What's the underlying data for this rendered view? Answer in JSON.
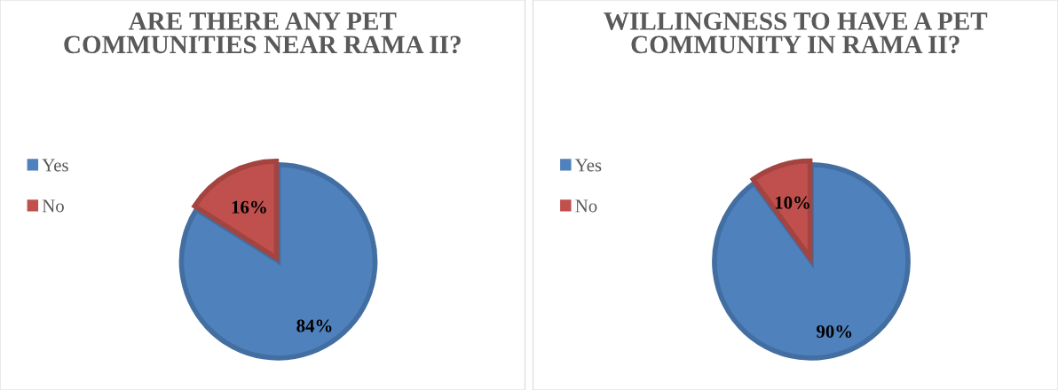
{
  "chart_data": [
    {
      "type": "pie",
      "title": "ARE THERE ANY PET COMMUNITIES NEAR RAMA II?",
      "categories": [
        "Yes",
        "No"
      ],
      "values": [
        84,
        16
      ],
      "colors": [
        "#4f81bd",
        "#c0504d"
      ],
      "value_labels": [
        "84%",
        "16%"
      ],
      "legend": "left"
    },
    {
      "type": "pie",
      "title": "WILLINGNESS TO HAVE A PET COMMUNITY IN RAMA II?",
      "categories": [
        "Yes",
        "No"
      ],
      "values": [
        90,
        10
      ],
      "colors": [
        "#4f81bd",
        "#c0504d"
      ],
      "value_labels": [
        "90%",
        "10%"
      ],
      "legend": "left"
    }
  ]
}
